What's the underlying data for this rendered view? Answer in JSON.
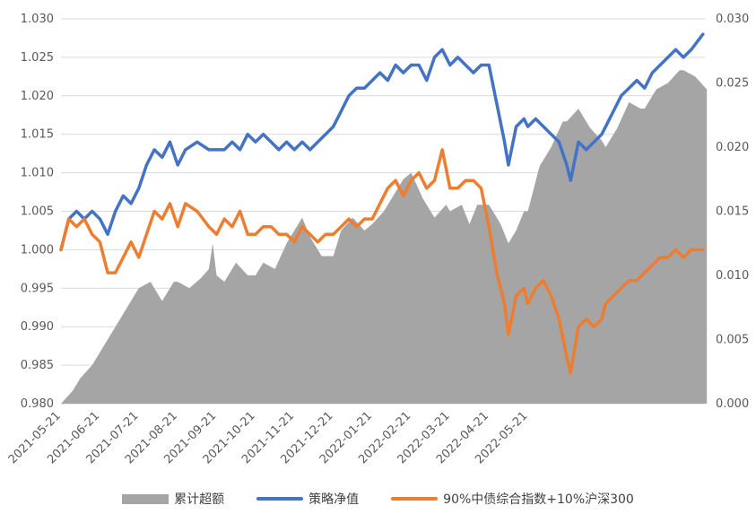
{
  "chart_data": {
    "type": "line",
    "title": "",
    "xlabel": "",
    "ylabel": "",
    "ylabel_right": "",
    "x_ticks": [
      "2021-05-21",
      "2021-06-21",
      "2021-07-21",
      "2021-08-21",
      "2021-09-21",
      "2021-10-21",
      "2021-11-21",
      "2021-12-21",
      "2022-01-21",
      "2022-02-21",
      "2022-03-21",
      "2022-04-21",
      "2022-05-21"
    ],
    "y_left": {
      "min": 0.98,
      "max": 1.03,
      "step": 0.005,
      "ticks": [
        "0.980",
        "0.985",
        "0.990",
        "0.995",
        "1.000",
        "1.005",
        "1.010",
        "1.015",
        "1.020",
        "1.025",
        "1.030"
      ]
    },
    "y_right": {
      "min": 0,
      "max": 0.03,
      "step": 0.005,
      "ticks": [
        "0.000",
        "0.005",
        "0.010",
        "0.015",
        "0.020",
        "0.025",
        "0.030"
      ]
    },
    "grid": "horizontal",
    "legend_position": "bottom",
    "series": [
      {
        "name": "累计超额",
        "type": "area",
        "axis": "right",
        "color": "#a5a5a5",
        "points": [
          [
            0,
            0.0
          ],
          [
            0.3,
            0.001
          ],
          [
            0.5,
            0.002
          ],
          [
            0.8,
            0.003
          ],
          [
            1.0,
            0.004
          ],
          [
            1.3,
            0.0055
          ],
          [
            1.6,
            0.007
          ],
          [
            1.9,
            0.0085
          ],
          [
            2.0,
            0.009
          ],
          [
            2.3,
            0.0095
          ],
          [
            2.6,
            0.008
          ],
          [
            2.9,
            0.0095
          ],
          [
            3.0,
            0.0095
          ],
          [
            3.3,
            0.009
          ],
          [
            3.6,
            0.0098
          ],
          [
            3.8,
            0.0105
          ],
          [
            3.9,
            0.0125
          ],
          [
            4.0,
            0.01
          ],
          [
            4.2,
            0.0095
          ],
          [
            4.5,
            0.011
          ],
          [
            4.8,
            0.01
          ],
          [
            5.0,
            0.01
          ],
          [
            5.2,
            0.011
          ],
          [
            5.5,
            0.0105
          ],
          [
            5.8,
            0.0125
          ],
          [
            6.0,
            0.0135
          ],
          [
            6.2,
            0.0145
          ],
          [
            6.4,
            0.013
          ],
          [
            6.7,
            0.0115
          ],
          [
            7.0,
            0.0115
          ],
          [
            7.2,
            0.0135
          ],
          [
            7.5,
            0.0145
          ],
          [
            7.8,
            0.0135
          ],
          [
            8.0,
            0.014
          ],
          [
            8.3,
            0.015
          ],
          [
            8.6,
            0.0165
          ],
          [
            8.8,
            0.0175
          ],
          [
            9.0,
            0.018
          ],
          [
            9.3,
            0.016
          ],
          [
            9.6,
            0.0145
          ],
          [
            9.9,
            0.0155
          ],
          [
            10.0,
            0.015
          ],
          [
            10.3,
            0.0155
          ],
          [
            10.5,
            0.014
          ],
          [
            10.7,
            0.0155
          ],
          [
            11.0,
            0.0155
          ],
          [
            11.3,
            0.014
          ],
          [
            11.5,
            0.0125
          ],
          [
            11.7,
            0.0135
          ],
          [
            11.9,
            0.015
          ],
          [
            12.0,
            0.015
          ],
          [
            12.3,
            0.0185
          ],
          [
            12.6,
            0.02
          ],
          [
            12.9,
            0.022
          ],
          [
            13.0,
            0.022
          ],
          [
            13.3,
            0.023
          ],
          [
            13.6,
            0.0215
          ],
          [
            13.9,
            0.0205
          ],
          [
            14.0,
            0.02
          ],
          [
            14.3,
            0.0215
          ],
          [
            14.6,
            0.0235
          ],
          [
            14.9,
            0.023
          ],
          [
            15.0,
            0.023
          ],
          [
            15.3,
            0.0245
          ],
          [
            15.6,
            0.025
          ],
          [
            15.9,
            0.026
          ],
          [
            16.0,
            0.026
          ],
          [
            16.3,
            0.0255
          ],
          [
            16.6,
            0.0245
          ]
        ]
      },
      {
        "name": "策略净值",
        "type": "line",
        "axis": "left",
        "color": "#4472c4",
        "points": [
          [
            0,
            1.0
          ],
          [
            0.2,
            1.004
          ],
          [
            0.4,
            1.005
          ],
          [
            0.6,
            1.004
          ],
          [
            0.8,
            1.005
          ],
          [
            1.0,
            1.004
          ],
          [
            1.2,
            1.002
          ],
          [
            1.4,
            1.005
          ],
          [
            1.6,
            1.007
          ],
          [
            1.8,
            1.006
          ],
          [
            2.0,
            1.008
          ],
          [
            2.2,
            1.011
          ],
          [
            2.4,
            1.013
          ],
          [
            2.6,
            1.012
          ],
          [
            2.8,
            1.014
          ],
          [
            3.0,
            1.011
          ],
          [
            3.2,
            1.013
          ],
          [
            3.5,
            1.014
          ],
          [
            3.8,
            1.013
          ],
          [
            4.0,
            1.013
          ],
          [
            4.2,
            1.013
          ],
          [
            4.4,
            1.014
          ],
          [
            4.6,
            1.013
          ],
          [
            4.8,
            1.015
          ],
          [
            5.0,
            1.014
          ],
          [
            5.2,
            1.015
          ],
          [
            5.4,
            1.014
          ],
          [
            5.6,
            1.013
          ],
          [
            5.8,
            1.014
          ],
          [
            6.0,
            1.013
          ],
          [
            6.2,
            1.014
          ],
          [
            6.4,
            1.013
          ],
          [
            6.6,
            1.014
          ],
          [
            6.8,
            1.015
          ],
          [
            7.0,
            1.016
          ],
          [
            7.2,
            1.018
          ],
          [
            7.4,
            1.02
          ],
          [
            7.6,
            1.021
          ],
          [
            7.8,
            1.021
          ],
          [
            8.0,
            1.022
          ],
          [
            8.2,
            1.023
          ],
          [
            8.4,
            1.022
          ],
          [
            8.6,
            1.024
          ],
          [
            8.8,
            1.023
          ],
          [
            9.0,
            1.024
          ],
          [
            9.2,
            1.024
          ],
          [
            9.4,
            1.022
          ],
          [
            9.6,
            1.025
          ],
          [
            9.8,
            1.026
          ],
          [
            10.0,
            1.024
          ],
          [
            10.2,
            1.025
          ],
          [
            10.4,
            1.024
          ],
          [
            10.6,
            1.023
          ],
          [
            10.8,
            1.024
          ],
          [
            11.0,
            1.024
          ],
          [
            11.2,
            1.019
          ],
          [
            11.4,
            1.014
          ],
          [
            11.5,
            1.011
          ],
          [
            11.7,
            1.016
          ],
          [
            11.9,
            1.017
          ],
          [
            12.0,
            1.016
          ],
          [
            12.2,
            1.017
          ],
          [
            12.4,
            1.016
          ],
          [
            12.6,
            1.015
          ],
          [
            12.8,
            1.014
          ],
          [
            13.0,
            1.011
          ],
          [
            13.1,
            1.009
          ],
          [
            13.3,
            1.014
          ],
          [
            13.5,
            1.013
          ],
          [
            13.7,
            1.014
          ],
          [
            13.9,
            1.015
          ],
          [
            14.0,
            1.016
          ],
          [
            14.2,
            1.018
          ],
          [
            14.4,
            1.02
          ],
          [
            14.6,
            1.021
          ],
          [
            14.8,
            1.022
          ],
          [
            15.0,
            1.021
          ],
          [
            15.2,
            1.023
          ],
          [
            15.4,
            1.024
          ],
          [
            15.6,
            1.025
          ],
          [
            15.8,
            1.026
          ],
          [
            16.0,
            1.025
          ],
          [
            16.2,
            1.026
          ],
          [
            16.5,
            1.028
          ]
        ]
      },
      {
        "name": "90%中债综合指数+10%沪深300",
        "type": "line",
        "axis": "left",
        "color": "#ed7d31",
        "points": [
          [
            0,
            1.0
          ],
          [
            0.2,
            1.004
          ],
          [
            0.4,
            1.003
          ],
          [
            0.6,
            1.004
          ],
          [
            0.8,
            1.002
          ],
          [
            1.0,
            1.001
          ],
          [
            1.2,
            0.997
          ],
          [
            1.4,
            0.997
          ],
          [
            1.6,
            0.999
          ],
          [
            1.8,
            1.001
          ],
          [
            2.0,
            0.999
          ],
          [
            2.2,
            1.002
          ],
          [
            2.4,
            1.005
          ],
          [
            2.6,
            1.004
          ],
          [
            2.8,
            1.006
          ],
          [
            3.0,
            1.003
          ],
          [
            3.2,
            1.006
          ],
          [
            3.5,
            1.005
          ],
          [
            3.8,
            1.003
          ],
          [
            4.0,
            1.002
          ],
          [
            4.2,
            1.004
          ],
          [
            4.4,
            1.003
          ],
          [
            4.6,
            1.005
          ],
          [
            4.8,
            1.002
          ],
          [
            5.0,
            1.002
          ],
          [
            5.2,
            1.003
          ],
          [
            5.4,
            1.003
          ],
          [
            5.6,
            1.002
          ],
          [
            5.8,
            1.002
          ],
          [
            6.0,
            1.001
          ],
          [
            6.2,
            1.003
          ],
          [
            6.4,
            1.002
          ],
          [
            6.6,
            1.001
          ],
          [
            6.8,
            1.002
          ],
          [
            7.0,
            1.002
          ],
          [
            7.2,
            1.003
          ],
          [
            7.4,
            1.004
          ],
          [
            7.6,
            1.003
          ],
          [
            7.8,
            1.004
          ],
          [
            8.0,
            1.004
          ],
          [
            8.2,
            1.006
          ],
          [
            8.4,
            1.008
          ],
          [
            8.6,
            1.009
          ],
          [
            8.8,
            1.007
          ],
          [
            9.0,
            1.009
          ],
          [
            9.2,
            1.01
          ],
          [
            9.4,
            1.008
          ],
          [
            9.6,
            1.009
          ],
          [
            9.8,
            1.013
          ],
          [
            10.0,
            1.008
          ],
          [
            10.2,
            1.008
          ],
          [
            10.4,
            1.009
          ],
          [
            10.6,
            1.009
          ],
          [
            10.8,
            1.008
          ],
          [
            11.0,
            1.003
          ],
          [
            11.2,
            0.997
          ],
          [
            11.4,
            0.993
          ],
          [
            11.5,
            0.989
          ],
          [
            11.7,
            0.994
          ],
          [
            11.9,
            0.995
          ],
          [
            12.0,
            0.993
          ],
          [
            12.2,
            0.995
          ],
          [
            12.4,
            0.996
          ],
          [
            12.6,
            0.994
          ],
          [
            12.8,
            0.991
          ],
          [
            13.0,
            0.986
          ],
          [
            13.1,
            0.984
          ],
          [
            13.3,
            0.99
          ],
          [
            13.5,
            0.991
          ],
          [
            13.7,
            0.99
          ],
          [
            13.9,
            0.991
          ],
          [
            14.0,
            0.993
          ],
          [
            14.2,
            0.994
          ],
          [
            14.4,
            0.995
          ],
          [
            14.6,
            0.996
          ],
          [
            14.8,
            0.996
          ],
          [
            15.0,
            0.997
          ],
          [
            15.2,
            0.998
          ],
          [
            15.4,
            0.999
          ],
          [
            15.6,
            0.999
          ],
          [
            15.8,
            1.0
          ],
          [
            16.0,
            0.999
          ],
          [
            16.2,
            1.0
          ],
          [
            16.5,
            1.0
          ]
        ]
      }
    ]
  },
  "legend": {
    "items": [
      {
        "label": "累计超额",
        "color": "#a5a5a5"
      },
      {
        "label": "策略净值",
        "color": "#4472c4"
      },
      {
        "label": "90%中债综合指数+10%沪深300",
        "color": "#ed7d31"
      }
    ]
  }
}
